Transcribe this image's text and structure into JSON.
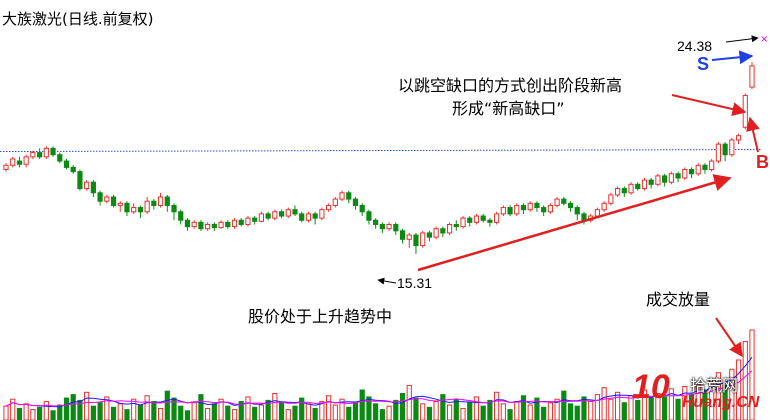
{
  "title": "大族激光(日线.前复权)",
  "annotations": {
    "gap_line1": "以跳空缺口的方式创出阶段新高",
    "gap_line2": "形成“新高缺口”",
    "trend": "股价处于上升趋势中",
    "volume": "成交放量",
    "label_s": "S",
    "label_b": "B"
  },
  "watermark": {
    "brand": "拾荒网",
    "num": "10",
    "domain": "Huang.CN"
  },
  "colors": {
    "up": "#e8322f",
    "down": "#0a8a12",
    "trend": "#e02020",
    "blue": "#2040e0",
    "ma": "#1a1aff",
    "ma2": "#ff00ff",
    "ref": "#2050c8"
  },
  "chart_data": {
    "type": "candlestick",
    "title": "大族激光(日线.前复权)",
    "price_low_label": 15.31,
    "price_high_label": 24.38,
    "price_range": [
      13.6,
      25.9
    ],
    "high_marker": "24.38",
    "low_marker": "15.31",
    "candles": [
      [
        19.3,
        19.5,
        19.6,
        19.2
      ],
      [
        19.5,
        19.8,
        19.9,
        19.4
      ],
      [
        19.7,
        19.55,
        19.9,
        19.4
      ],
      [
        19.55,
        19.9,
        20.0,
        19.4
      ],
      [
        19.9,
        20.1,
        20.2,
        19.8
      ],
      [
        20.1,
        19.9,
        20.3,
        19.8
      ],
      [
        19.9,
        20.3,
        20.4,
        19.8
      ],
      [
        20.3,
        20.0,
        20.4,
        19.9
      ],
      [
        20.0,
        19.7,
        20.1,
        19.6
      ],
      [
        19.7,
        19.4,
        19.8,
        19.3
      ],
      [
        19.4,
        19.2,
        19.5,
        19.1
      ],
      [
        19.2,
        18.4,
        19.3,
        18.3
      ],
      [
        18.4,
        18.7,
        18.8,
        18.3
      ],
      [
        18.7,
        18.2,
        18.8,
        18.0
      ],
      [
        18.2,
        17.8,
        18.3,
        17.6
      ],
      [
        17.8,
        18.0,
        18.1,
        17.7
      ],
      [
        18.0,
        17.6,
        18.1,
        17.5
      ],
      [
        17.6,
        17.7,
        17.8,
        17.3
      ],
      [
        17.7,
        17.3,
        17.8,
        17.1
      ],
      [
        17.3,
        17.5,
        17.7,
        17.2
      ],
      [
        17.5,
        17.3,
        17.6,
        17.0
      ],
      [
        17.3,
        17.8,
        18.0,
        17.2
      ],
      [
        17.8,
        17.6,
        17.9,
        17.4
      ],
      [
        17.6,
        18.0,
        18.2,
        17.5
      ],
      [
        18.0,
        17.6,
        18.1,
        17.3
      ],
      [
        17.6,
        17.3,
        17.7,
        16.9
      ],
      [
        17.3,
        16.9,
        17.4,
        16.7
      ],
      [
        16.9,
        16.6,
        17.0,
        16.4
      ],
      [
        16.6,
        16.8,
        16.9,
        16.5
      ],
      [
        16.8,
        16.5,
        16.9,
        16.4
      ],
      [
        16.5,
        16.7,
        16.8,
        16.4
      ],
      [
        16.7,
        16.55,
        16.8,
        16.4
      ],
      [
        16.55,
        16.8,
        16.9,
        16.5
      ],
      [
        16.8,
        16.6,
        16.9,
        16.5
      ],
      [
        16.6,
        16.9,
        17.0,
        16.5
      ],
      [
        16.9,
        16.7,
        17.0,
        16.6
      ],
      [
        16.7,
        17.0,
        17.1,
        16.6
      ],
      [
        17.0,
        16.85,
        17.1,
        16.7
      ],
      [
        16.85,
        17.2,
        17.3,
        16.8
      ],
      [
        17.2,
        17.0,
        17.3,
        16.9
      ],
      [
        17.0,
        17.3,
        17.4,
        16.9
      ],
      [
        17.3,
        17.1,
        17.4,
        17.0
      ],
      [
        17.1,
        17.4,
        17.5,
        17.0
      ],
      [
        17.4,
        17.2,
        17.6,
        17.1
      ],
      [
        17.2,
        16.9,
        17.3,
        16.8
      ],
      [
        16.9,
        17.2,
        17.3,
        16.8
      ],
      [
        17.2,
        17.0,
        17.3,
        16.7
      ],
      [
        17.0,
        17.4,
        17.5,
        16.9
      ],
      [
        17.4,
        17.6,
        17.7,
        17.3
      ],
      [
        17.6,
        17.9,
        18.0,
        17.5
      ],
      [
        17.9,
        18.2,
        18.3,
        17.8
      ],
      [
        18.2,
        17.9,
        18.3,
        17.7
      ],
      [
        17.9,
        17.6,
        18.0,
        17.4
      ],
      [
        17.6,
        17.3,
        17.7,
        17.1
      ],
      [
        17.3,
        16.9,
        17.4,
        16.7
      ],
      [
        16.9,
        16.7,
        17.0,
        16.5
      ],
      [
        16.7,
        16.5,
        16.8,
        16.3
      ],
      [
        16.5,
        16.7,
        16.8,
        16.4
      ],
      [
        16.7,
        16.4,
        16.8,
        16.2
      ],
      [
        16.4,
        16.0,
        16.5,
        15.8
      ],
      [
        16.0,
        16.2,
        16.3,
        15.6
      ],
      [
        16.2,
        15.7,
        16.3,
        15.31
      ],
      [
        15.7,
        16.3,
        16.4,
        15.6
      ],
      [
        16.3,
        16.1,
        16.4,
        15.9
      ],
      [
        16.1,
        16.5,
        16.6,
        16.0
      ],
      [
        16.5,
        16.3,
        16.6,
        16.1
      ],
      [
        16.3,
        16.7,
        16.8,
        16.2
      ],
      [
        16.7,
        16.6,
        16.9,
        16.4
      ],
      [
        16.6,
        17.0,
        17.1,
        16.5
      ],
      [
        17.0,
        16.8,
        17.1,
        16.6
      ],
      [
        16.8,
        17.1,
        17.2,
        16.7
      ],
      [
        17.1,
        16.9,
        17.2,
        16.8
      ],
      [
        16.9,
        16.8,
        17.0,
        16.6
      ],
      [
        16.8,
        17.2,
        17.3,
        16.7
      ],
      [
        17.2,
        17.5,
        17.6,
        17.1
      ],
      [
        17.5,
        17.2,
        17.6,
        17.1
      ],
      [
        17.2,
        17.6,
        17.7,
        17.1
      ],
      [
        17.6,
        17.4,
        17.7,
        17.2
      ],
      [
        17.4,
        17.7,
        17.8,
        17.3
      ],
      [
        17.7,
        17.5,
        17.8,
        17.3
      ],
      [
        17.5,
        17.3,
        17.6,
        17.1
      ],
      [
        17.3,
        17.6,
        17.7,
        17.2
      ],
      [
        17.6,
        17.9,
        18.0,
        17.5
      ],
      [
        17.9,
        17.7,
        18.0,
        17.6
      ],
      [
        17.7,
        17.5,
        17.8,
        17.3
      ],
      [
        17.5,
        17.2,
        17.6,
        16.9
      ],
      [
        17.2,
        16.9,
        17.3,
        16.7
      ],
      [
        16.9,
        17.1,
        17.2,
        16.8
      ],
      [
        17.1,
        17.4,
        17.5,
        17.0
      ],
      [
        17.4,
        17.7,
        17.8,
        17.3
      ],
      [
        17.7,
        18.1,
        18.2,
        17.6
      ],
      [
        18.1,
        18.4,
        18.5,
        18.0
      ],
      [
        18.4,
        18.2,
        18.5,
        18.0
      ],
      [
        18.2,
        18.6,
        18.7,
        18.1
      ],
      [
        18.6,
        18.4,
        18.7,
        18.3
      ],
      [
        18.4,
        18.8,
        18.9,
        18.3
      ],
      [
        18.8,
        18.6,
        18.9,
        18.4
      ],
      [
        18.6,
        19.0,
        19.1,
        18.5
      ],
      [
        19.0,
        18.7,
        19.1,
        18.5
      ],
      [
        18.7,
        19.1,
        19.2,
        18.6
      ],
      [
        19.1,
        18.9,
        19.2,
        18.7
      ],
      [
        18.9,
        19.3,
        19.4,
        18.8
      ],
      [
        19.3,
        19.1,
        19.4,
        18.9
      ],
      [
        19.1,
        19.5,
        19.6,
        19.0
      ],
      [
        19.5,
        19.3,
        19.6,
        19.1
      ],
      [
        19.3,
        19.7,
        19.8,
        19.2
      ],
      [
        19.7,
        20.5,
        20.6,
        19.6
      ],
      [
        20.5,
        20.0,
        20.6,
        19.7
      ],
      [
        20.0,
        20.7,
        20.8,
        19.9
      ],
      [
        20.7,
        20.9,
        21.0,
        20.5
      ],
      [
        21.3,
        22.8,
        22.9,
        21.2
      ],
      [
        23.2,
        24.2,
        24.38,
        23.1
      ]
    ],
    "volume": [
      12,
      18,
      10,
      14,
      9,
      11,
      16,
      8,
      13,
      19,
      22,
      17,
      24,
      12,
      15,
      20,
      11,
      14,
      9,
      18,
      13,
      21,
      16,
      10,
      25,
      19,
      12,
      8,
      15,
      22,
      10,
      14,
      18,
      12,
      9,
      16,
      20,
      11,
      13,
      17,
      23,
      15,
      9,
      12,
      19,
      14,
      10,
      16,
      21,
      13,
      18,
      11,
      15,
      26,
      20,
      14,
      9,
      12,
      17,
      23,
      30,
      19,
      14,
      11,
      16,
      22,
      13,
      18,
      10,
      15,
      20,
      12,
      17,
      24,
      14,
      9,
      16,
      21,
      13,
      19,
      11,
      15,
      18,
      25,
      14,
      12,
      20,
      16,
      22,
      28,
      18,
      24,
      15,
      21,
      17,
      26,
      19,
      23,
      20,
      27,
      18,
      29,
      22,
      31,
      26,
      34,
      41,
      30,
      44,
      52,
      68,
      78
    ]
  }
}
